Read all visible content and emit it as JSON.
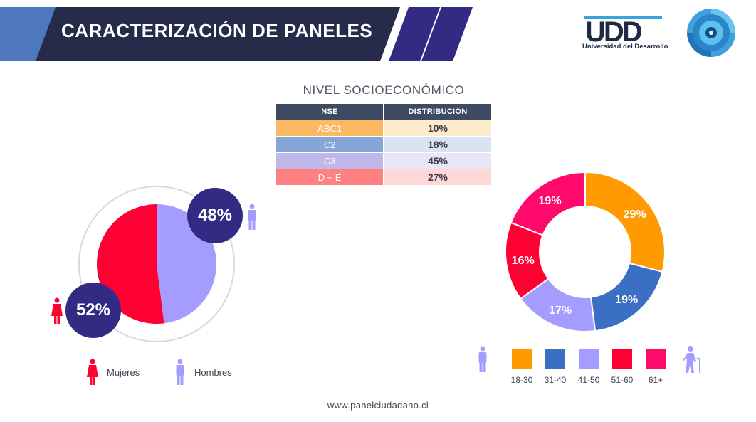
{
  "header": {
    "title": "CARACTERIZACIÓN DE PANELES",
    "logo_text": "Universidad del Desarrollo",
    "logo_letters": "UDD"
  },
  "colors": {
    "banner_dark": "#272b4a",
    "banner_accent": "#332a83",
    "banner_light": "#4d78c0",
    "women": "#ff0033",
    "men": "#a49dff",
    "bubble": "#332a83"
  },
  "nse_table": {
    "title": "NIVEL SOCIOECONÓMICO",
    "headers": [
      "NSE",
      "DISTRIBUCIÓN"
    ],
    "rows": [
      {
        "label": "ABC1",
        "value": "10%",
        "color": "#fdb863",
        "light": "#feebcc"
      },
      {
        "label": "C2",
        "value": "18%",
        "color": "#86a6d8",
        "light": "#d9e3f3"
      },
      {
        "label": "C3",
        "value": "45%",
        "color": "#c0b8e8",
        "light": "#e9e6f7"
      },
      {
        "label": "D + E",
        "value": "27%",
        "color": "#ff8080",
        "light": "#ffd7d7"
      }
    ]
  },
  "chart_data": [
    {
      "type": "pie",
      "title": "",
      "labels": [
        "Mujeres",
        "Hombres"
      ],
      "values": [
        52,
        48
      ],
      "value_labels": [
        "52%",
        "48%"
      ],
      "colors": [
        "#ff0033",
        "#a49dff"
      ],
      "legend": "bottom"
    },
    {
      "type": "pie",
      "title": "",
      "labels": [
        "18-30",
        "31-40",
        "41-50",
        "51-60",
        "61+"
      ],
      "values": [
        29,
        19,
        17,
        16,
        19
      ],
      "value_labels": [
        "29%",
        "19%",
        "17%",
        "16%",
        "19%"
      ],
      "colors": [
        "#ff9a00",
        "#3a6fc4",
        "#a49dff",
        "#ff0033",
        "#ff0a6c"
      ],
      "legend": "bottom"
    }
  ],
  "footer": {
    "url": "www.panelciudadano.cl"
  }
}
